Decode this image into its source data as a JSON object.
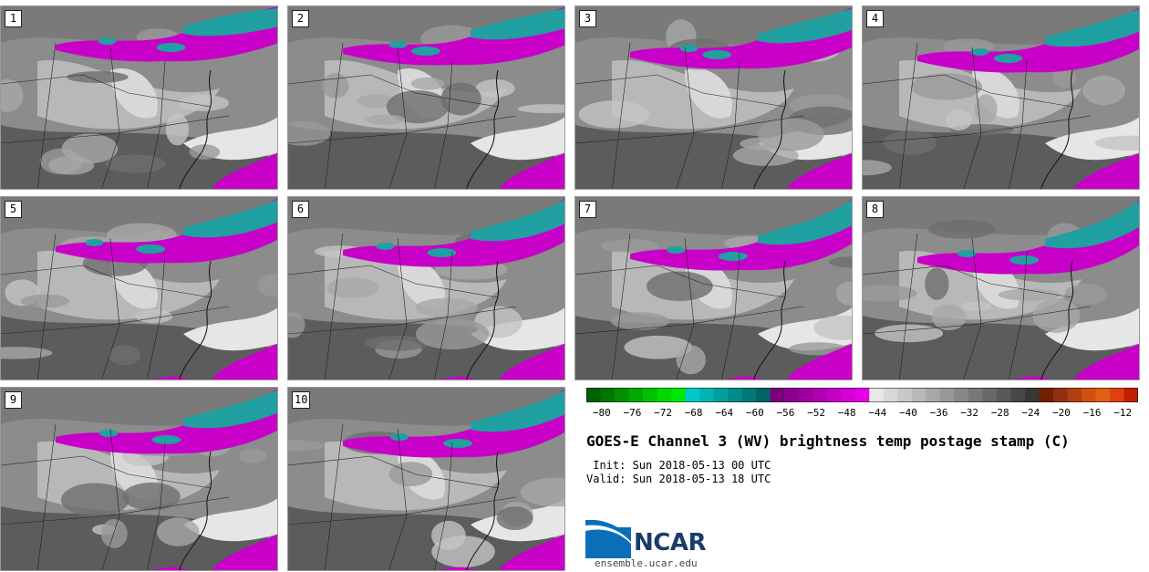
{
  "panels": [
    {
      "label": "1"
    },
    {
      "label": "2"
    },
    {
      "label": "3"
    },
    {
      "label": "4"
    },
    {
      "label": "5"
    },
    {
      "label": "6"
    },
    {
      "label": "7"
    },
    {
      "label": "8"
    },
    {
      "label": "9"
    },
    {
      "label": "10"
    }
  ],
  "colorbar": {
    "ticks": [
      "−80",
      "−76",
      "−72",
      "−68",
      "−64",
      "−60",
      "−56",
      "−52",
      "−48",
      "−44",
      "−40",
      "−36",
      "−32",
      "−28",
      "−24",
      "−20",
      "−16",
      "−12"
    ],
    "min": -82,
    "max": -10,
    "bins": [
      {
        "from": -82,
        "to": -68,
        "color": "#00a000"
      },
      {
        "from": -68,
        "to": -56,
        "color": "#00a8a8"
      },
      {
        "from": -56,
        "to": -44,
        "color": "#c800c8"
      },
      {
        "from": -44,
        "to": -24,
        "color": "#9a9a9a"
      },
      {
        "from": -24,
        "to": -10,
        "color": "#d05010"
      }
    ]
  },
  "title": "GOES-E Channel 3 (WV) brightness temp postage stamp (C)",
  "init": " Init: Sun 2018-05-13 00 UTC",
  "valid": "Valid: Sun 2018-05-13 18 UTC",
  "logo": {
    "text": "NCAR",
    "url": "ensemble.ucar.edu"
  },
  "colors": {
    "moist": "#c800c8",
    "cold": "#20a0a0",
    "dry": "#6a6a6a"
  }
}
